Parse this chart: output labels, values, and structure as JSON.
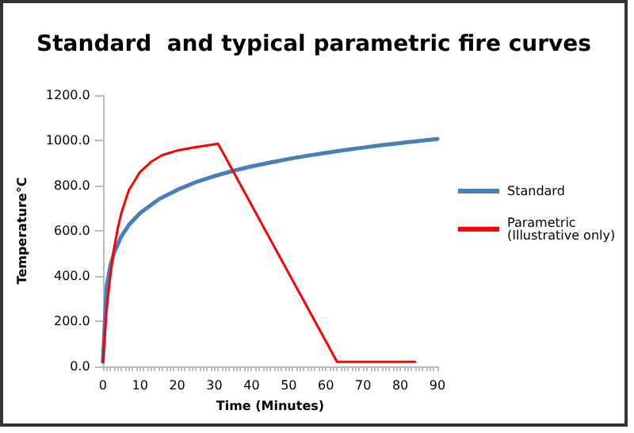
{
  "chart_data": {
    "type": "line",
    "title": "Standard  and typical parametric fire curves",
    "xlabel": "Time (Minutes)",
    "ylabel": "Temperature°C",
    "xlim": [
      0,
      90
    ],
    "xticks": [
      0,
      10,
      20,
      30,
      40,
      50,
      60,
      70,
      80,
      90
    ],
    "ylim": [
      0,
      1200
    ],
    "yticks": [
      {
        "value": 0,
        "label": "0.0"
      },
      {
        "value": 200,
        "label": "200.0"
      },
      {
        "value": 400,
        "label": "400.0"
      },
      {
        "value": 600,
        "label": "600.0"
      },
      {
        "value": 800,
        "label": "800.0"
      },
      {
        "value": 1000,
        "label": "1000.0"
      },
      {
        "value": 1200,
        "label": "1200.0"
      }
    ],
    "grid": false,
    "legend": "right",
    "marker": "none",
    "line_style": "solid",
    "series": [
      {
        "name": "Standard",
        "color": "#4a7ebb",
        "x": [
          0,
          1,
          2,
          3,
          5,
          7,
          10,
          15,
          20,
          25,
          30,
          35,
          40,
          45,
          50,
          55,
          60,
          65,
          70,
          75,
          80,
          85,
          90
        ],
        "values": [
          20,
          349,
          445,
          502,
          576,
          626,
          678,
          739,
          781,
          815,
          842,
          865,
          885,
          902,
          918,
          932,
          945,
          957,
          968,
          979,
          988,
          997,
          1006
        ]
      },
      {
        "name": "Parametric (Illustrative only)",
        "color": "#ff0000",
        "x": [
          0,
          1,
          2,
          3,
          4,
          5,
          7,
          10,
          13,
          16,
          20,
          25,
          31,
          63,
          84
        ],
        "values": [
          20,
          250,
          400,
          520,
          610,
          680,
          780,
          860,
          905,
          935,
          955,
          970,
          985,
          20,
          20
        ]
      }
    ]
  }
}
